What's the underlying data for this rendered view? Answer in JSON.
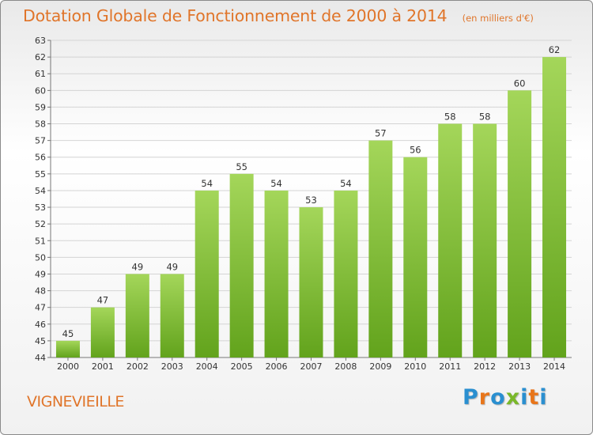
{
  "header": {
    "title": "Dotation Globale de Fonctionnement de 2000 à 2014",
    "subtitle": "(en milliers d'€)"
  },
  "footer": {
    "commune": "VIGNEVIEILLE",
    "logo_text": "Proxiti",
    "logo_colors": [
      "#2a8fd0",
      "#e8751a",
      "#2a8fd0",
      "#7ab82a",
      "#2a8fd0",
      "#e8751a",
      "#2a8fd0"
    ]
  },
  "colors": {
    "title": "#e0752a",
    "bar_light": "#a4d65a",
    "bar_dark": "#62a31c",
    "grid": "#d4d4d4"
  },
  "chart_data": {
    "type": "bar",
    "title": "Dotation Globale de Fonctionnement de 2000 à 2014",
    "subtitle": "(en milliers d'€)",
    "xlabel": "",
    "ylabel": "",
    "categories": [
      "2000",
      "2001",
      "2002",
      "2003",
      "2004",
      "2005",
      "2006",
      "2007",
      "2008",
      "2009",
      "2010",
      "2011",
      "2012",
      "2013",
      "2014"
    ],
    "values": [
      45,
      47,
      49,
      49,
      54,
      55,
      54,
      53,
      54,
      57,
      56,
      58,
      58,
      60,
      62
    ],
    "ylim": [
      44,
      63
    ],
    "yticks": [
      44,
      45,
      46,
      47,
      48,
      49,
      50,
      51,
      52,
      53,
      54,
      55,
      56,
      57,
      58,
      59,
      60,
      61,
      62,
      63
    ],
    "grid": true,
    "data_labels": true
  }
}
